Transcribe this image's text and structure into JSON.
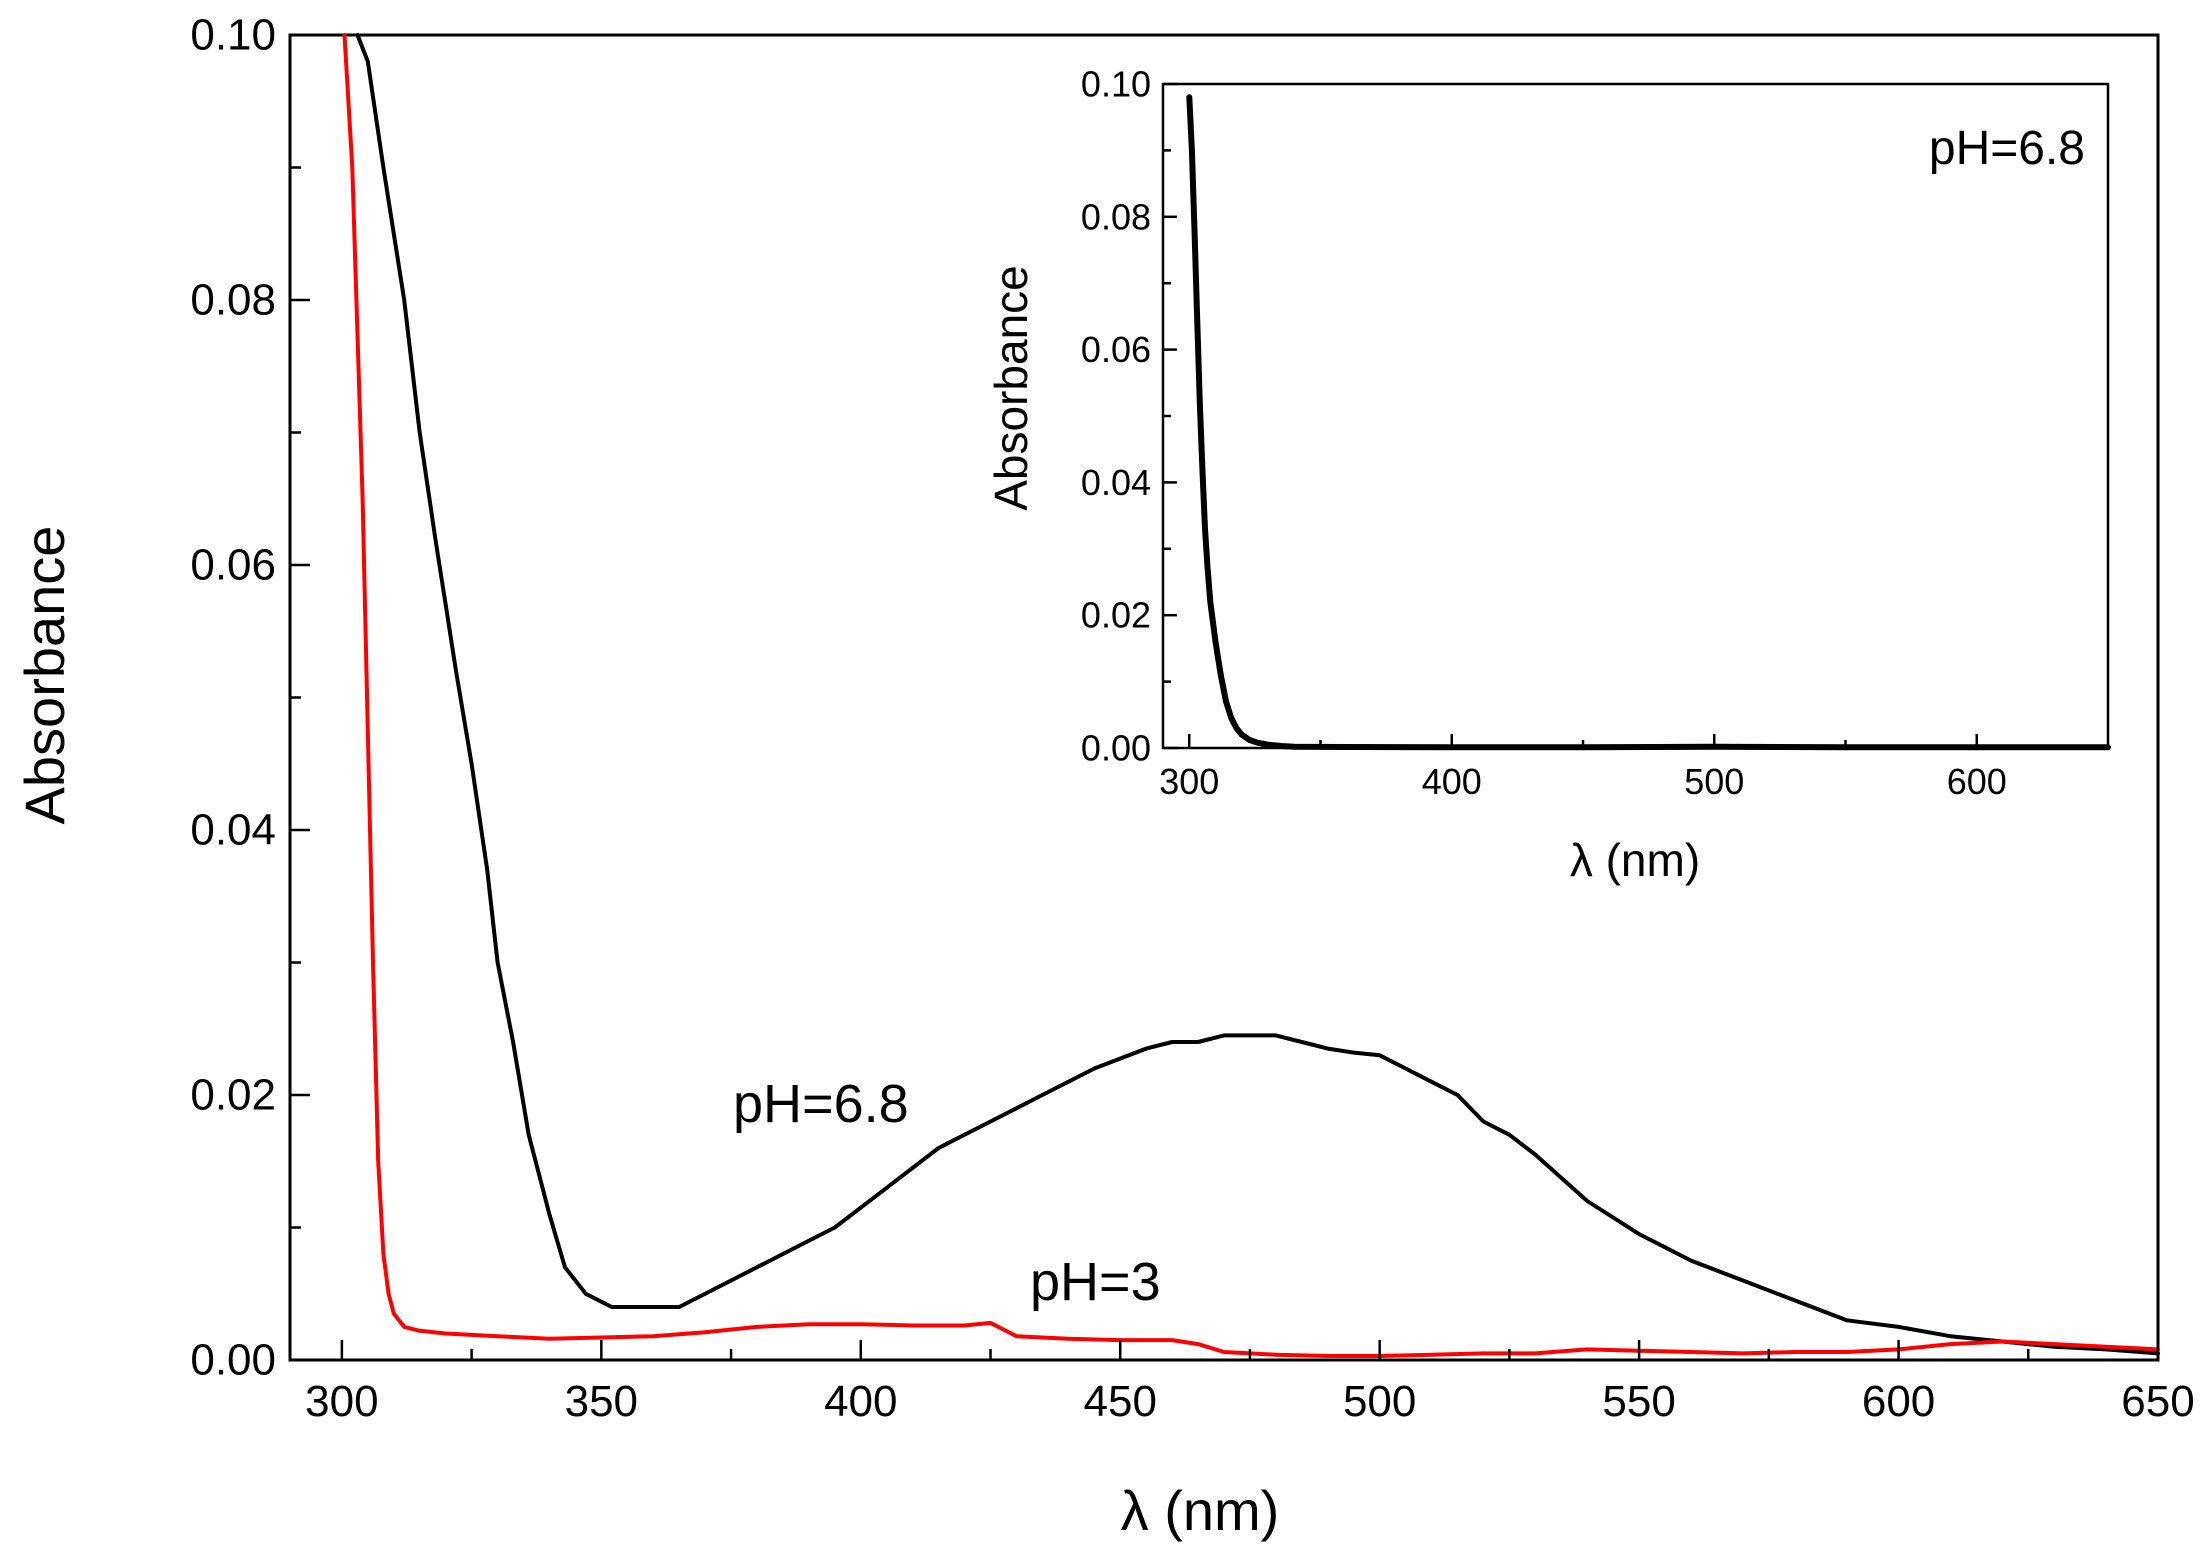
{
  "chart_data": [
    {
      "type": "line",
      "panel": "main",
      "title": "",
      "xlabel": "λ  (nm)",
      "ylabel": "Absorbance",
      "xlim": [
        290,
        650
      ],
      "ylim": [
        0,
        0.1
      ],
      "xticks": [
        300,
        350,
        400,
        450,
        500,
        550,
        600,
        650
      ],
      "yticks": [
        0.0,
        0.02,
        0.04,
        0.06,
        0.08,
        0.1
      ],
      "xtick_labels": [
        "300",
        "350",
        "400",
        "450",
        "500",
        "550",
        "600",
        "650"
      ],
      "ytick_labels": [
        "0.00",
        "0.02",
        "0.04",
        "0.06",
        "0.08",
        "0.10"
      ],
      "grid": false,
      "series": [
        {
          "name": "pH=6.8",
          "color": "#000000",
          "x": [
            303,
            305,
            308,
            312,
            315,
            318,
            320,
            322,
            325,
            328,
            330,
            333,
            336,
            340,
            343,
            347,
            352,
            358,
            365,
            375,
            385,
            395,
            405,
            415,
            425,
            435,
            445,
            455,
            460,
            465,
            470,
            475,
            480,
            485,
            490,
            495,
            500,
            505,
            510,
            515,
            520,
            525,
            530,
            540,
            550,
            560,
            570,
            580,
            590,
            600,
            610,
            620,
            630,
            640,
            650
          ],
          "y": [
            0.1,
            0.098,
            0.09,
            0.08,
            0.07,
            0.062,
            0.057,
            0.052,
            0.045,
            0.037,
            0.03,
            0.024,
            0.017,
            0.011,
            0.007,
            0.005,
            0.004,
            0.004,
            0.004,
            0.006,
            0.008,
            0.01,
            0.013,
            0.016,
            0.018,
            0.02,
            0.022,
            0.0235,
            0.024,
            0.024,
            0.0245,
            0.0245,
            0.0245,
            0.024,
            0.0235,
            0.0232,
            0.023,
            0.022,
            0.021,
            0.02,
            0.018,
            0.017,
            0.0155,
            0.012,
            0.0095,
            0.0075,
            0.006,
            0.0045,
            0.003,
            0.0025,
            0.0018,
            0.0014,
            0.001,
            0.0008,
            0.0005
          ]
        },
        {
          "name": "pH=3",
          "color": "#ff0000",
          "x": [
            300.5,
            302,
            304,
            306,
            307,
            308,
            309,
            310,
            312,
            315,
            320,
            330,
            340,
            350,
            360,
            370,
            380,
            390,
            400,
            410,
            420,
            425,
            430,
            440,
            450,
            460,
            465,
            470,
            480,
            490,
            500,
            510,
            520,
            530,
            540,
            550,
            560,
            570,
            580,
            590,
            600,
            610,
            620,
            630,
            640,
            650
          ],
          "y": [
            0.1,
            0.09,
            0.065,
            0.03,
            0.015,
            0.008,
            0.005,
            0.0035,
            0.0025,
            0.0022,
            0.002,
            0.0018,
            0.0016,
            0.0017,
            0.0018,
            0.0021,
            0.0025,
            0.0027,
            0.0027,
            0.0026,
            0.0026,
            0.0028,
            0.0018,
            0.0016,
            0.0015,
            0.0015,
            0.0012,
            0.0006,
            0.0004,
            0.0003,
            0.0003,
            0.0004,
            0.0005,
            0.0005,
            0.0008,
            0.0007,
            0.0006,
            0.0005,
            0.0006,
            0.0006,
            0.0008,
            0.0012,
            0.0014,
            0.0012,
            0.001,
            0.0008
          ]
        }
      ],
      "annotations": [
        {
          "text": "pH=6.8",
          "x": 416,
          "y": 0.0185
        },
        {
          "text": "pH=3",
          "x": 445,
          "y": 0.0055
        }
      ]
    },
    {
      "type": "line",
      "panel": "inset",
      "title": "",
      "xlabel": "λ  (nm)",
      "ylabel": "Absorbance",
      "xlim": [
        290,
        650
      ],
      "ylim": [
        0,
        0.1
      ],
      "xticks": [
        300,
        400,
        500,
        600
      ],
      "yticks": [
        0.0,
        0.02,
        0.04,
        0.06,
        0.08,
        0.1
      ],
      "xtick_labels": [
        "300",
        "400",
        "500",
        "600"
      ],
      "ytick_labels": [
        "0.00",
        "0.02",
        "0.04",
        "0.06",
        "0.08",
        "0.10"
      ],
      "grid": false,
      "series": [
        {
          "name": "pH=6.8",
          "color": "#000000",
          "x": [
            300,
            301,
            302,
            303,
            304,
            305,
            306,
            307,
            308,
            310,
            312,
            314,
            316,
            318,
            320,
            323,
            326,
            330,
            335,
            340,
            360,
            400,
            450,
            500,
            550,
            600,
            650
          ],
          "y": [
            0.098,
            0.09,
            0.078,
            0.065,
            0.052,
            0.042,
            0.033,
            0.027,
            0.022,
            0.016,
            0.011,
            0.007,
            0.0045,
            0.003,
            0.002,
            0.0012,
            0.0008,
            0.0005,
            0.0003,
            0.0002,
            0.00015,
            0.0001,
            0.0001,
            0.0002,
            0.0001,
            0.0001,
            0.0001
          ]
        }
      ],
      "annotations": [
        {
          "text": "pH=6.8"
        }
      ]
    }
  ]
}
